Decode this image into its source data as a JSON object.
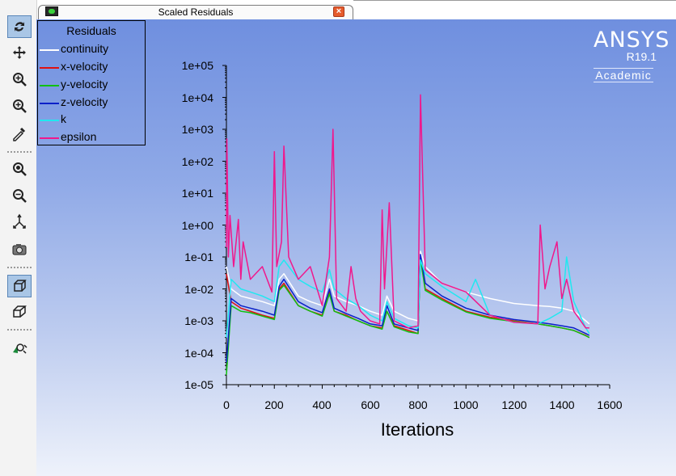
{
  "window": {
    "tab_title": "Scaled Residuals",
    "tab_icon": "fluent-window-icon",
    "close_icon": "close-icon"
  },
  "toolbar": {
    "buttons": [
      {
        "name": "rotate-view-icon",
        "active": true
      },
      {
        "name": "pan-icon",
        "active": false
      },
      {
        "name": "zoom-in-out-icon",
        "active": false
      },
      {
        "name": "zoom-to-area-icon",
        "active": false
      },
      {
        "name": "probe-icon",
        "active": false
      },
      {
        "name": "fit-to-window-icon",
        "active": false
      },
      {
        "name": "zoom-out-icon",
        "active": false
      },
      {
        "name": "select-axis-icon",
        "active": false
      },
      {
        "name": "camera-icon",
        "active": false
      },
      {
        "name": "orthographic-view-icon",
        "active": true
      },
      {
        "name": "perspective-view-icon",
        "active": false
      },
      {
        "name": "mouse-options-icon",
        "active": false
      }
    ]
  },
  "logo": {
    "brand": "ANSYS",
    "version": "R19.1",
    "edition": "Academic"
  },
  "chart_data": {
    "type": "line",
    "title": "",
    "xlabel": "Iterations",
    "ylabel": "",
    "xlim": [
      0,
      1600
    ],
    "ylim": [
      1e-05,
      100000
    ],
    "yscale": "log",
    "xticks": [
      "0",
      "200",
      "400",
      "600",
      "800",
      "1000",
      "1200",
      "1400",
      "1600"
    ],
    "yticks": [
      "1e+05",
      "1e+04",
      "1e+03",
      "1e+02",
      "1e+01",
      "1e+00",
      "1e-01",
      "1e-02",
      "1e-03",
      "1e-04",
      "1e-05"
    ],
    "legend": {
      "title": "Residuals",
      "placement": "top-left"
    },
    "series": [
      {
        "name": "continuity",
        "color": "#ffffff",
        "x": [
          0,
          20,
          60,
          100,
          150,
          200,
          220,
          240,
          300,
          350,
          400,
          430,
          450,
          500,
          550,
          600,
          650,
          670,
          700,
          760,
          800,
          810,
          830,
          900,
          1000,
          1100,
          1200,
          1300,
          1350,
          1400,
          1450,
          1500,
          1515
        ],
        "y": [
          0.05,
          0.01,
          0.006,
          0.005,
          0.004,
          0.003,
          0.02,
          0.03,
          0.006,
          0.004,
          0.003,
          0.02,
          0.006,
          0.004,
          0.003,
          0.002,
          0.0015,
          0.006,
          0.002,
          0.0012,
          0.001,
          0.15,
          0.05,
          0.015,
          0.008,
          0.005,
          0.0035,
          0.003,
          0.0028,
          0.0025,
          0.002,
          0.001,
          0.0008
        ]
      },
      {
        "name": "x-velocity",
        "color": "#e01010",
        "x": [
          0,
          20,
          60,
          100,
          150,
          200,
          220,
          240,
          300,
          350,
          400,
          430,
          450,
          500,
          550,
          600,
          650,
          670,
          700,
          760,
          800,
          810,
          830,
          900,
          1000,
          1100,
          1200,
          1300,
          1350,
          1400,
          1450,
          1500,
          1515
        ],
        "y": [
          0.03,
          0.004,
          0.0025,
          0.002,
          0.0015,
          0.0012,
          0.01,
          0.015,
          0.003,
          0.002,
          0.0015,
          0.008,
          0.002,
          0.0015,
          0.001,
          0.0007,
          0.0006,
          0.002,
          0.0007,
          0.0005,
          0.0004,
          0.1,
          0.01,
          0.005,
          0.002,
          0.0013,
          0.001,
          0.0008,
          0.0007,
          0.0006,
          0.0005,
          0.00035,
          0.0003
        ]
      },
      {
        "name": "y-velocity",
        "color": "#10c010",
        "x": [
          0,
          20,
          60,
          100,
          150,
          200,
          220,
          240,
          300,
          350,
          400,
          430,
          450,
          500,
          550,
          600,
          650,
          670,
          700,
          760,
          800,
          810,
          830,
          900,
          1000,
          1100,
          1200,
          1300,
          1350,
          1400,
          1450,
          1500,
          1515
        ],
        "y": [
          2e-05,
          0.003,
          0.002,
          0.0018,
          0.0014,
          0.0011,
          0.009,
          0.013,
          0.003,
          0.002,
          0.0014,
          0.007,
          0.002,
          0.0014,
          0.001,
          0.0007,
          0.00055,
          0.002,
          0.00065,
          0.00045,
          0.0004,
          0.09,
          0.009,
          0.0045,
          0.0019,
          0.0012,
          0.00095,
          0.0008,
          0.0007,
          0.0006,
          0.0005,
          0.00034,
          0.0003
        ]
      },
      {
        "name": "z-velocity",
        "color": "#0a20c8",
        "x": [
          0,
          20,
          60,
          100,
          150,
          200,
          220,
          240,
          300,
          350,
          400,
          430,
          450,
          500,
          550,
          600,
          650,
          670,
          700,
          760,
          800,
          810,
          830,
          900,
          1000,
          1100,
          1200,
          1300,
          1350,
          1400,
          1450,
          1500,
          1515
        ],
        "y": [
          5e-05,
          0.005,
          0.003,
          0.0025,
          0.002,
          0.0015,
          0.012,
          0.02,
          0.004,
          0.0025,
          0.0018,
          0.01,
          0.0025,
          0.0017,
          0.0012,
          0.0008,
          0.0007,
          0.003,
          0.0008,
          0.0006,
          0.0005,
          0.12,
          0.015,
          0.006,
          0.0025,
          0.0015,
          0.0011,
          0.0009,
          0.0008,
          0.0007,
          0.0006,
          0.0004,
          0.00035
        ]
      },
      {
        "name": "k",
        "color": "#20e8f0",
        "x": [
          0,
          20,
          60,
          100,
          150,
          200,
          220,
          240,
          300,
          350,
          400,
          430,
          450,
          500,
          550,
          600,
          650,
          670,
          700,
          760,
          800,
          810,
          830,
          900,
          1000,
          1040,
          1100,
          1200,
          1300,
          1350,
          1400,
          1420,
          1450,
          1500,
          1515
        ],
        "y": [
          0.0003,
          0.02,
          0.01,
          0.008,
          0.006,
          0.004,
          0.05,
          0.08,
          0.02,
          0.012,
          0.008,
          0.04,
          0.01,
          0.005,
          0.003,
          0.0015,
          0.001,
          0.004,
          0.0012,
          0.0007,
          0.0006,
          0.08,
          0.03,
          0.012,
          0.004,
          0.02,
          0.0015,
          0.0009,
          0.0008,
          0.0012,
          0.002,
          0.1,
          0.004,
          0.0006,
          0.0004
        ]
      },
      {
        "name": "epsilon",
        "color": "#f0188c",
        "x": [
          0,
          2,
          8,
          15,
          30,
          50,
          60,
          70,
          100,
          150,
          190,
          200,
          210,
          230,
          240,
          260,
          300,
          350,
          400,
          430,
          445,
          460,
          500,
          520,
          540,
          560,
          600,
          640,
          650,
          660,
          680,
          700,
          760,
          800,
          810,
          830,
          900,
          1000,
          1100,
          1200,
          1300,
          1310,
          1330,
          1350,
          1380,
          1400,
          1420,
          1450,
          1500,
          1515
        ],
        "y": [
          0.2,
          500,
          0.1,
          2,
          0.05,
          1.5,
          0.02,
          0.3,
          0.02,
          0.05,
          0.008,
          200,
          0.05,
          0.3,
          300,
          0.1,
          0.02,
          0.05,
          0.003,
          0.1,
          1000,
          0.005,
          0.002,
          0.05,
          0.005,
          0.002,
          0.001,
          0.0008,
          3,
          0.01,
          5,
          0.001,
          0.0006,
          0.0007,
          12000,
          0.04,
          0.015,
          0.008,
          0.0015,
          0.0009,
          0.0008,
          1,
          0.01,
          0.05,
          0.3,
          0.005,
          0.02,
          0.002,
          0.0006,
          0.0006
        ]
      }
    ]
  }
}
